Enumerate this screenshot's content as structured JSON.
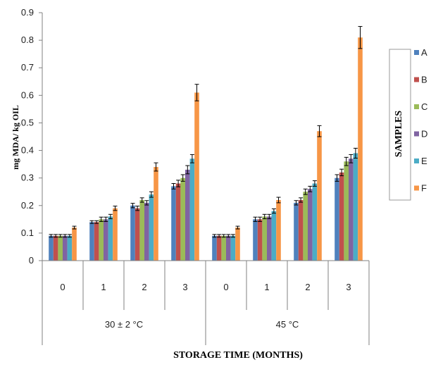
{
  "chart_data": {
    "type": "bar",
    "title": "",
    "xlabel": "STORAGE TIME (MONTHS)",
    "ylabel": "mg MDA/ kg OIL",
    "ylim": [
      0,
      0.9
    ],
    "y_ticks": [
      "0",
      "0.1",
      "0.2",
      "0.3",
      "0.4",
      "0.5",
      "0.6",
      "0.7",
      "0.8",
      "0.9"
    ],
    "groups": [
      "30 ± 2 °C",
      "45 °C"
    ],
    "categories": [
      "0",
      "1",
      "2",
      "3"
    ],
    "legend_title": "SAMPLES",
    "legend_position": "right",
    "series": [
      {
        "name": "A",
        "color": "#4F81BD",
        "values": [
          [
            0.09,
            0.14,
            0.2,
            0.27
          ],
          [
            0.09,
            0.15,
            0.21,
            0.3
          ]
        ],
        "errors": [
          [
            0.005,
            0.005,
            0.008,
            0.01
          ],
          [
            0.005,
            0.008,
            0.008,
            0.012
          ]
        ]
      },
      {
        "name": "B",
        "color": "#C0504D",
        "values": [
          [
            0.09,
            0.14,
            0.19,
            0.28
          ],
          [
            0.09,
            0.15,
            0.22,
            0.32
          ]
        ],
        "errors": [
          [
            0.005,
            0.005,
            0.008,
            0.012
          ],
          [
            0.005,
            0.008,
            0.008,
            0.012
          ]
        ]
      },
      {
        "name": "C",
        "color": "#9BBB59",
        "values": [
          [
            0.09,
            0.15,
            0.22,
            0.3
          ],
          [
            0.09,
            0.16,
            0.25,
            0.36
          ]
        ],
        "errors": [
          [
            0.005,
            0.008,
            0.008,
            0.012
          ],
          [
            0.005,
            0.008,
            0.01,
            0.015
          ]
        ]
      },
      {
        "name": "D",
        "color": "#8064A2",
        "values": [
          [
            0.09,
            0.15,
            0.21,
            0.33
          ],
          [
            0.09,
            0.16,
            0.26,
            0.37
          ]
        ],
        "errors": [
          [
            0.005,
            0.008,
            0.008,
            0.015
          ],
          [
            0.005,
            0.008,
            0.01,
            0.015
          ]
        ]
      },
      {
        "name": "E",
        "color": "#4BACC6",
        "values": [
          [
            0.09,
            0.16,
            0.24,
            0.37
          ],
          [
            0.09,
            0.18,
            0.28,
            0.39
          ]
        ],
        "errors": [
          [
            0.005,
            0.008,
            0.01,
            0.015
          ],
          [
            0.005,
            0.008,
            0.01,
            0.018
          ]
        ]
      },
      {
        "name": "F",
        "color": "#F79646",
        "values": [
          [
            0.12,
            0.19,
            0.34,
            0.61
          ],
          [
            0.12,
            0.22,
            0.47,
            0.81
          ]
        ],
        "errors": [
          [
            0.005,
            0.008,
            0.015,
            0.03
          ],
          [
            0.005,
            0.01,
            0.02,
            0.04
          ]
        ]
      }
    ]
  }
}
